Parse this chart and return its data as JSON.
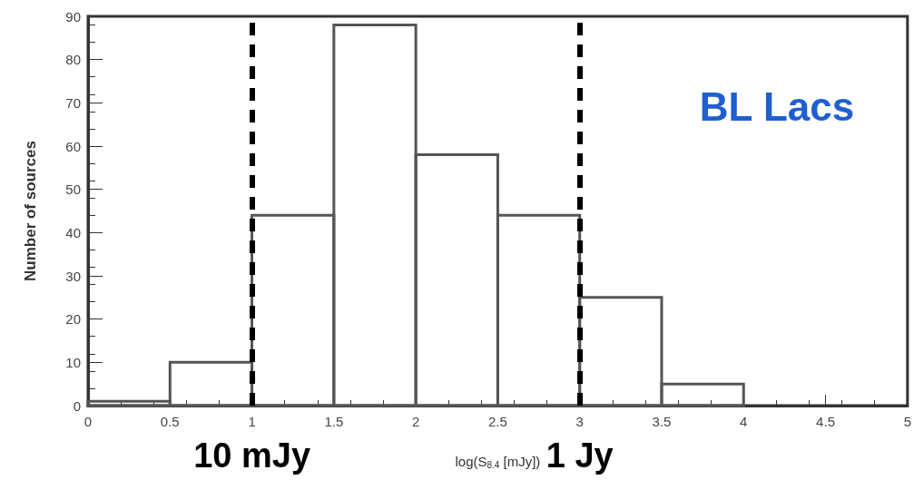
{
  "chart_data": {
    "type": "histogram",
    "xlabel": "log(S$_{8.4}$ [mJy])",
    "ylabel": "Number of sources",
    "bins": [
      0,
      0.5,
      1,
      1.5,
      2,
      2.5,
      3,
      3.5,
      4
    ],
    "values": [
      1,
      10,
      44,
      88,
      58,
      44,
      25,
      5
    ],
    "color": "#555555",
    "xlim": [
      0,
      5
    ],
    "xticks": [
      0,
      0.5,
      1,
      1.5,
      2,
      2.5,
      3,
      3.5,
      4,
      4.5,
      5
    ],
    "ylim": [
      0,
      90
    ],
    "yticks": [
      0,
      10,
      20,
      30,
      40,
      50,
      60,
      70,
      80,
      90
    ],
    "grid": false,
    "ref_lines": [
      {
        "axis": "x",
        "value": 1,
        "label": "10 mJy",
        "color": "#000000",
        "line_style": "dashed"
      },
      {
        "axis": "x",
        "value": 3,
        "label": "1 Jy",
        "color": "#000000",
        "line_style": "dashed"
      }
    ],
    "annotations": [
      "BL Lacs"
    ]
  }
}
